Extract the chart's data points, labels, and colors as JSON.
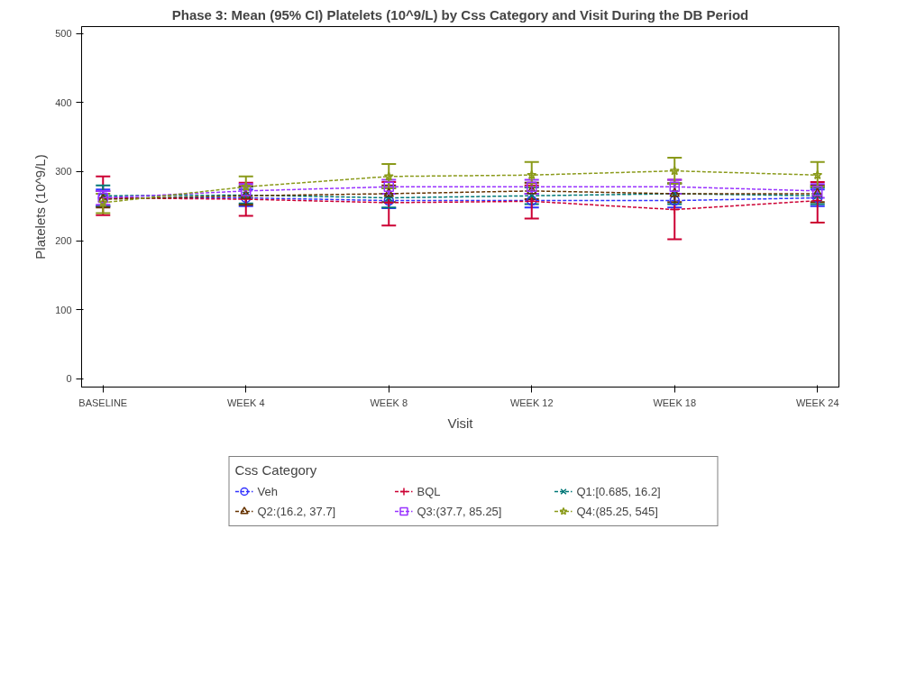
{
  "chart_data": {
    "type": "line",
    "title": "Phase 3: Mean (95% CI) Platelets (10^9/L) by Css Category and Visit During the DB Period",
    "xlabel": "Visit",
    "ylabel": "Platelets (10^9/L)",
    "legend_title": "Css Category",
    "categories": [
      "BASELINE",
      "WEEK 4",
      "WEEK 8",
      "WEEK 12",
      "WEEK 18",
      "WEEK 24"
    ],
    "ylim": [
      -12,
      510
    ],
    "yticks": [
      0,
      100,
      200,
      300,
      400,
      500
    ],
    "grid": false,
    "legend": "bottom",
    "line_style": "dashed",
    "series": [
      {
        "name": "Veh",
        "color": "#3333ff",
        "marker": "circle",
        "values": [
          262,
          262,
          258,
          258,
          258,
          262
        ],
        "errors": [
          12,
          12,
          [
            247,
            268
          ],
          10,
          10,
          12
        ]
      },
      {
        "name": "BQL",
        "color": "#cc0033",
        "marker": "cross",
        "values": [
          262,
          260,
          255,
          257,
          245,
          258
        ],
        "errors": [
          [
            237,
            293
          ],
          [
            236,
            284
          ],
          [
            222,
            285
          ],
          [
            232,
            280
          ],
          [
            202,
            288
          ],
          [
            226,
            285
          ]
        ]
      },
      {
        "name": "Q1:[0.685, 16.2]",
        "color": "#007777",
        "marker": "x",
        "values": [
          265,
          266,
          262,
          265,
          268,
          265
        ],
        "errors": [
          15,
          12,
          14,
          12,
          15,
          12
        ]
      },
      {
        "name": "Q2:(16.2, 37.7]",
        "color": "#663300",
        "marker": "triangle",
        "values": [
          260,
          265,
          268,
          272,
          268,
          268
        ],
        "errors": [
          12,
          [
            252,
            279
          ],
          12,
          12,
          [
            256,
            283
          ],
          12
        ]
      },
      {
        "name": "Q3:(37.7, 85.25]",
        "color": "#9933ff",
        "marker": "square",
        "values": [
          262,
          272,
          278,
          278,
          278,
          272
        ],
        "errors": [
          10,
          10,
          10,
          10,
          10,
          10
        ]
      },
      {
        "name": "Q4:(85.25, 545]",
        "color": "#8a9a1a",
        "marker": "star",
        "values": [
          255,
          278,
          293,
          295,
          301,
          295
        ],
        "errors": [
          [
            240,
            268
          ],
          [
            262,
            293
          ],
          [
            276,
            311
          ],
          [
            278,
            314
          ],
          [
            283,
            320
          ],
          [
            278,
            314
          ]
        ]
      }
    ]
  }
}
